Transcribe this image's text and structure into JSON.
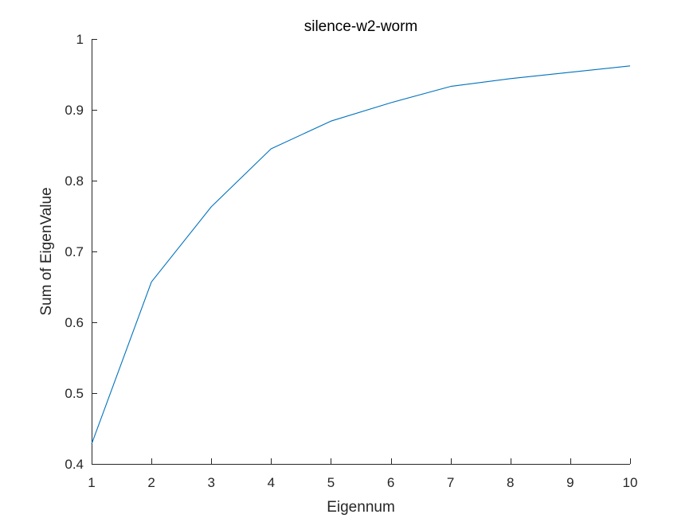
{
  "chart_data": {
    "type": "line",
    "title": "silence-w2-worm",
    "xlabel": "Eigennum",
    "ylabel": "Sum of EigenValue",
    "xlim": [
      1,
      10
    ],
    "ylim": [
      0.4,
      1
    ],
    "xticks": [
      1,
      2,
      3,
      4,
      5,
      6,
      7,
      8,
      9,
      10
    ],
    "yticks": [
      0.4,
      0.5,
      0.6,
      0.7,
      0.8,
      0.9,
      1
    ],
    "ytick_labels": [
      "0.4",
      "0.5",
      "0.6",
      "0.7",
      "0.8",
      "0.9",
      "1"
    ],
    "grid": false,
    "legend": "none",
    "series": [
      {
        "color": "#0072BD",
        "x": [
          1,
          2,
          3,
          4,
          5,
          6,
          7,
          8,
          9,
          10
        ],
        "y": [
          0.428,
          0.657,
          0.763,
          0.845,
          0.884,
          0.91,
          0.933,
          0.944,
          0.953,
          0.962
        ]
      }
    ]
  }
}
